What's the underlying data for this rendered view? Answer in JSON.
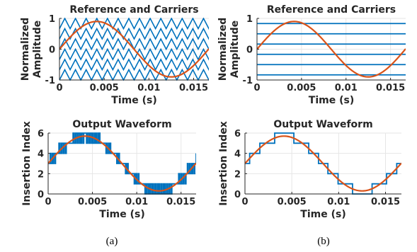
{
  "figure": {
    "captions": [
      "(a)",
      "(b)"
    ]
  },
  "colors": {
    "carrier": "#0072bd",
    "reference": "#d95319",
    "grid": "#e6e6e6",
    "axis": "#262626"
  },
  "chart_data": [
    {
      "type": "line",
      "panel": "a-top",
      "title": "Reference and Carriers",
      "xlabel": "Time (s)",
      "ylabel": "Normalized Amplitude",
      "xlim": [
        0,
        0.0167
      ],
      "ylim": [
        -1,
        1
      ],
      "xticks": [
        "0",
        "0.005",
        "0.01",
        "0.015"
      ],
      "xtick_values": [
        0,
        0.005,
        0.01,
        0.015
      ],
      "yticks": [
        "-1",
        "0",
        "1"
      ],
      "ytick_values": [
        -1,
        0,
        1
      ],
      "grid": true,
      "series": [
        {
          "role": "carriers",
          "kind": "phase-shifted triangular carriers",
          "count": 6,
          "periods": 14,
          "color": "#0072bd"
        },
        {
          "role": "reference",
          "kind": "sine",
          "amplitude": 0.9,
          "frequency_hz": 60,
          "color": "#d95319"
        }
      ]
    },
    {
      "type": "line",
      "panel": "b-top",
      "title": "Reference and Carriers",
      "xlabel": "Time (s)",
      "ylabel": "Normalized Amplitude",
      "xlim": [
        0,
        0.0167
      ],
      "ylim": [
        -1,
        1
      ],
      "xticks": [
        "0",
        "0.005",
        "0.01",
        "0.015"
      ],
      "xtick_values": [
        0,
        0.005,
        0.01,
        0.015
      ],
      "yticks": [
        "-1",
        "0",
        "1"
      ],
      "ytick_values": [
        -1,
        0,
        1
      ],
      "grid": true,
      "series": [
        {
          "role": "carriers",
          "kind": "constant levels",
          "levels": [
            -0.8333,
            -0.5,
            -0.1667,
            0.1667,
            0.5,
            0.8333
          ],
          "color": "#0072bd"
        },
        {
          "role": "reference",
          "kind": "sine",
          "amplitude": 0.9,
          "frequency_hz": 60,
          "color": "#d95319"
        }
      ]
    },
    {
      "type": "line",
      "panel": "a-bottom",
      "title": "Output Waveform",
      "xlabel": "Time (s)",
      "ylabel": "Insertion Index",
      "xlim": [
        0,
        0.0167
      ],
      "ylim": [
        0,
        6
      ],
      "xticks": [
        "0",
        "0.005",
        "0.01",
        "0.015"
      ],
      "xtick_values": [
        0,
        0.005,
        0.01,
        0.015
      ],
      "yticks": [
        "0",
        "2",
        "4",
        "6"
      ],
      "ytick_values": [
        0,
        2,
        4,
        6
      ],
      "grid": true,
      "series": [
        {
          "role": "output",
          "kind": "PWM stepped waveform",
          "switching_per_cycle": 14,
          "color": "#0072bd"
        },
        {
          "role": "reference",
          "kind": "sine",
          "offset": 3,
          "amplitude": 2.7,
          "frequency_hz": 60,
          "color": "#d95319"
        }
      ]
    },
    {
      "type": "line",
      "panel": "b-bottom",
      "title": "Output Waveform",
      "xlabel": "Time (s)",
      "ylabel": "Insertion Index",
      "xlim": [
        0,
        0.0167
      ],
      "ylim": [
        0,
        6
      ],
      "xticks": [
        "0",
        "0.005",
        "0.01",
        "0.015"
      ],
      "xtick_values": [
        0,
        0.005,
        0.01,
        0.015
      ],
      "yticks": [
        "0",
        "2",
        "4",
        "6"
      ],
      "ytick_values": [
        0,
        2,
        4,
        6
      ],
      "grid": true,
      "series": [
        {
          "role": "output",
          "kind": "nearest-level staircase",
          "color": "#0072bd"
        },
        {
          "role": "reference",
          "kind": "sine",
          "offset": 3,
          "amplitude": 2.7,
          "frequency_hz": 60,
          "color": "#d95319"
        }
      ]
    }
  ]
}
